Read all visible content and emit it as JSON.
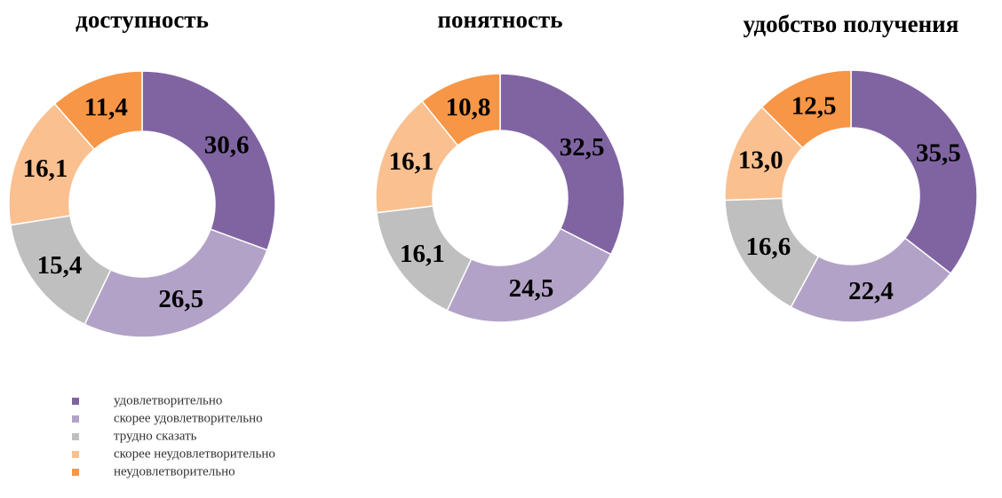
{
  "chart_data": [
    {
      "type": "donut",
      "title": "доступность",
      "categories": [
        "удовлетворительно",
        "скорее удовлетворительно",
        "трудно сказать",
        "скорее неудовлетворительно",
        "неудовлетворительно"
      ],
      "values": [
        30.6,
        26.5,
        15.4,
        16.1,
        11.4
      ],
      "value_labels": [
        "30,6",
        "26,5",
        "15,4",
        "16,1",
        "11,4"
      ],
      "colors": [
        "#8064a2",
        "#b3a2c7",
        "#bfbfbf",
        "#fac090",
        "#f79646"
      ]
    },
    {
      "type": "donut",
      "title": "понятность",
      "categories": [
        "удовлетворительно",
        "скорее удовлетворительно",
        "трудно сказать",
        "скорее неудовлетворительно",
        "неудовлетворительно"
      ],
      "values": [
        32.5,
        24.5,
        16.1,
        16.1,
        10.8
      ],
      "value_labels": [
        "32,5",
        "24,5",
        "16,1",
        "16,1",
        "10,8"
      ],
      "colors": [
        "#8064a2",
        "#b3a2c7",
        "#bfbfbf",
        "#fac090",
        "#f79646"
      ]
    },
    {
      "type": "donut",
      "title": "удобство получения",
      "categories": [
        "удовлетворительно",
        "скорее удовлетворительно",
        "трудно сказать",
        "скорее неудовлетворительно",
        "неудовлетворительно"
      ],
      "values": [
        35.5,
        22.4,
        16.6,
        13.0,
        12.5
      ],
      "value_labels": [
        "35,5",
        "22,4",
        "16,6",
        "13,0",
        "12,5"
      ],
      "colors": [
        "#8064a2",
        "#b3a2c7",
        "#bfbfbf",
        "#fac090",
        "#f79646"
      ]
    }
  ]
}
